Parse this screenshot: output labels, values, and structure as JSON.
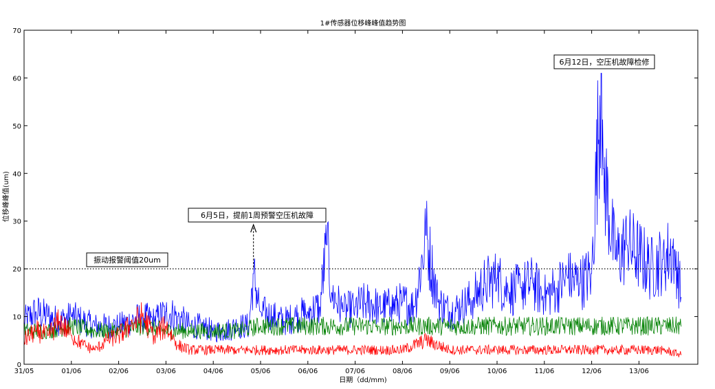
{
  "chart_data": {
    "type": "line",
    "title": "1#传感器位移峰峰值趋势图",
    "xlabel": "日期（dd/mm)",
    "ylabel": "位移峰峰值(um)",
    "ylim": [
      0,
      70
    ],
    "yticks": [
      0,
      10,
      20,
      30,
      40,
      50,
      60,
      70
    ],
    "xlim": [
      0,
      15
    ],
    "xtick_labels": [
      "31/05",
      "01/06",
      "02/06",
      "03/06",
      "04/06",
      "05/06",
      "06/06",
      "07/06",
      "08/06",
      "09/06",
      "10/06",
      "11/06",
      "12/06",
      "13/06"
    ],
    "grid": false,
    "threshold": {
      "value": 20,
      "label": "振动报警阈值20um",
      "style": "dotted"
    },
    "annotations": [
      {
        "text": "6月5日，提前1周预警空压机故障",
        "x_day": 4.85,
        "y": 20,
        "arrow": true
      },
      {
        "text": "6月12日，空压机故障检修",
        "x_day": 12.2,
        "y": 61,
        "arrow": false
      }
    ],
    "series": [
      {
        "color": "#0000ff",
        "x_days": [
          0,
          0.25,
          0.5,
          0.75,
          1,
          1.25,
          1.5,
          1.75,
          2,
          2.25,
          2.5,
          2.75,
          3,
          3.25,
          3.5,
          3.75,
          4,
          4.25,
          4.5,
          4.75,
          4.85,
          5,
          5.25,
          5.5,
          5.75,
          6,
          6.25,
          6.4,
          6.5,
          6.75,
          7,
          7.25,
          7.5,
          7.75,
          8,
          8.25,
          8.5,
          8.75,
          9,
          9.25,
          9.5,
          9.75,
          10,
          10.25,
          10.5,
          10.75,
          11,
          11.25,
          11.5,
          11.75,
          12,
          12.2,
          12.25,
          12.5,
          12.75,
          13,
          13.25,
          13.5,
          13.75,
          13.9
        ],
        "values": [
          9,
          11,
          10,
          9,
          10,
          9,
          8,
          8,
          8,
          9,
          10,
          9,
          11,
          10,
          8,
          8,
          7,
          7,
          8,
          8,
          19,
          11,
          10,
          9,
          10,
          11,
          12,
          25,
          15,
          11,
          12,
          13,
          12,
          12,
          13,
          12,
          27,
          13,
          11,
          12,
          14,
          17,
          18,
          15,
          16,
          17,
          14,
          16,
          18,
          17,
          19,
          61,
          41,
          22,
          25,
          23,
          20,
          22,
          24,
          14
        ]
      },
      {
        "color": "#008000",
        "x_days": [
          0,
          0.5,
          1,
          1.5,
          2,
          2.5,
          3,
          3.5,
          4,
          4.5,
          5,
          5.5,
          6,
          6.5,
          7,
          7.5,
          8,
          8.5,
          9,
          9.5,
          10,
          10.5,
          11,
          11.5,
          12,
          12.5,
          13,
          13.5,
          13.9
        ],
        "values": [
          7,
          7,
          8,
          7,
          7,
          8,
          7,
          7,
          7,
          7,
          8,
          8,
          8,
          8,
          8,
          8,
          8,
          8,
          8,
          8,
          8,
          8,
          8,
          8,
          8,
          8,
          8,
          8,
          8
        ]
      },
      {
        "color": "#ff0000",
        "x_days": [
          0,
          0.25,
          0.5,
          0.75,
          1,
          1.25,
          1.5,
          1.75,
          2,
          2.25,
          2.5,
          2.75,
          3,
          3.25,
          3.5,
          4,
          4.5,
          5,
          5.5,
          6,
          6.5,
          7,
          7.5,
          8,
          8.5,
          9,
          9.5,
          10,
          10.5,
          11,
          11.5,
          12,
          12.5,
          13,
          13.5,
          13.9
        ],
        "values": [
          5,
          7,
          6,
          9,
          6,
          4,
          3,
          5,
          6,
          8,
          10,
          6,
          8,
          4,
          3,
          3,
          3,
          3,
          3,
          3,
          3,
          3,
          3,
          3,
          5,
          3,
          3,
          3,
          3,
          3,
          3,
          3,
          3,
          3,
          3,
          2
        ]
      }
    ]
  }
}
